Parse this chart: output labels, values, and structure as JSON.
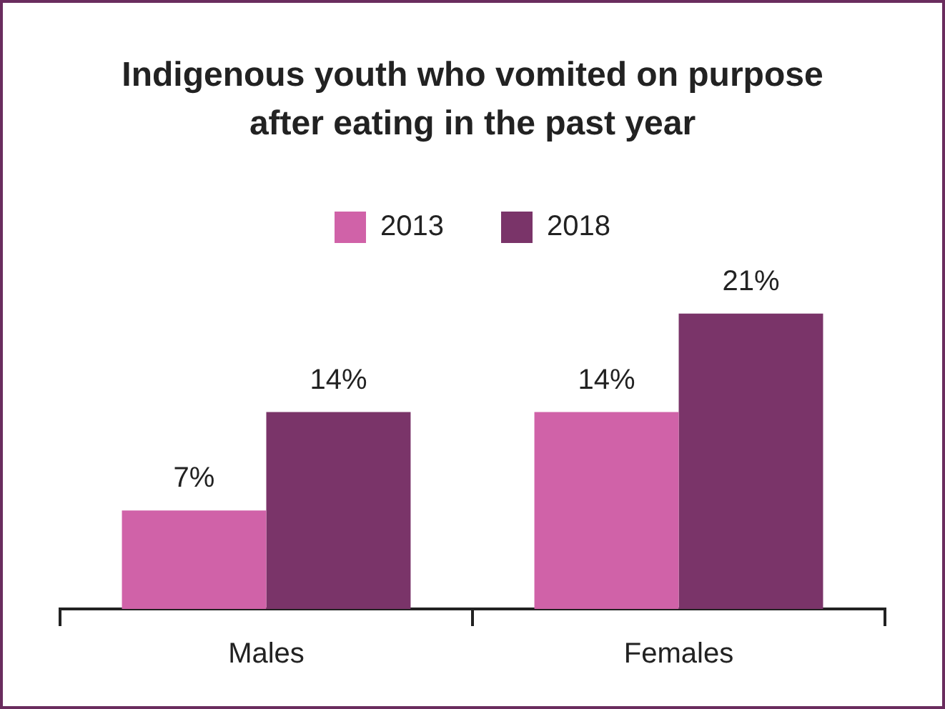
{
  "chart_data": {
    "type": "bar",
    "title": "Indigenous youth who vomited on purpose after eating in the past year",
    "categories": [
      "Males",
      "Females"
    ],
    "series": [
      {
        "name": "2013",
        "color": "#d062a8",
        "values": [
          7,
          14
        ],
        "value_labels": [
          "7%",
          "14%"
        ]
      },
      {
        "name": "2018",
        "color": "#7a3469",
        "values": [
          14,
          21
        ],
        "value_labels": [
          "14%",
          "21%"
        ]
      }
    ],
    "legend": "top",
    "grid": false
  }
}
